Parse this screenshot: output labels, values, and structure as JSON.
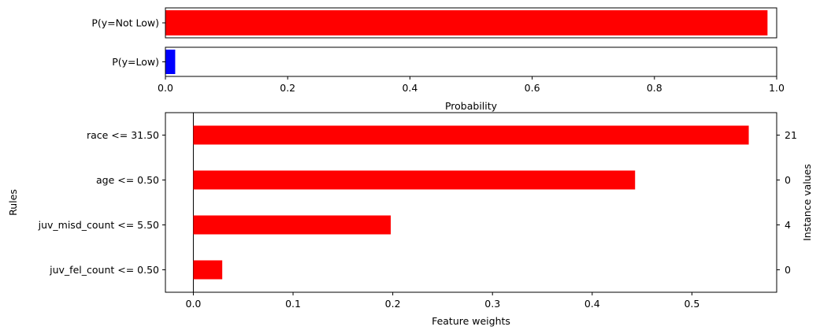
{
  "chart_data": [
    {
      "type": "bar",
      "orientation": "horizontal",
      "panel": "prediction-probabilities",
      "categories": [
        "P(y=Not Low)",
        "P(y=Low)"
      ],
      "values": [
        0.985,
        0.016
      ],
      "colors": [
        "#ff0000",
        "#0000ff"
      ],
      "xlabel": "Probability",
      "xlim": [
        0,
        1
      ],
      "xticks": [
        "0.0",
        "0.2",
        "0.4",
        "0.6",
        "0.8",
        "1.0"
      ],
      "xtick_values": [
        0,
        0.2,
        0.4,
        0.6,
        0.8,
        1.0
      ]
    },
    {
      "type": "bar",
      "orientation": "horizontal",
      "panel": "feature-weights",
      "categories": [
        "race <= 31.50",
        "age <= 0.50",
        "juv_misd_count <= 5.50",
        "juv_fel_count <= 0.50"
      ],
      "values": [
        0.557,
        0.443,
        0.198,
        0.029
      ],
      "instance_values": [
        "21",
        "0",
        "4",
        "0"
      ],
      "color": "#ff0000",
      "xlabel": "Feature weights",
      "ylabel": "Rules",
      "y2label": "Instance values",
      "xlim": [
        -0.028,
        0.585
      ],
      "xticks": [
        "0.0",
        "0.1",
        "0.2",
        "0.3",
        "0.4",
        "0.5"
      ],
      "xtick_values": [
        0,
        0.1,
        0.2,
        0.3,
        0.4,
        0.5
      ]
    }
  ]
}
